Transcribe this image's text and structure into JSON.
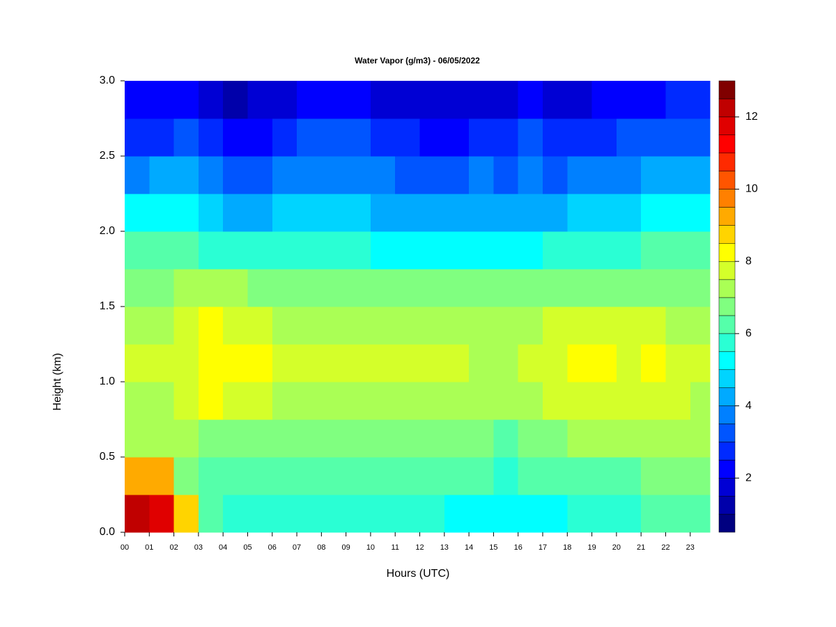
{
  "chart_data": {
    "type": "heatmap",
    "title": "Water Vapor (g/m3) - 06/05/2022",
    "xlabel": "Hours (UTC)",
    "ylabel": "Height (km)",
    "x": [
      0,
      1,
      2,
      3,
      4,
      5,
      6,
      7,
      8,
      9,
      10,
      11,
      12,
      13,
      14,
      15,
      16,
      17,
      18,
      19,
      20,
      21,
      22,
      23
    ],
    "y": [
      0,
      0.25,
      0.5,
      0.75,
      1,
      1.25,
      1.5,
      1.75,
      2,
      2.25,
      2.5,
      2.75
    ],
    "z": [
      [
        12,
        11.5,
        8.5,
        6,
        5.5,
        5.5,
        5.5,
        5.5,
        5.5,
        5.5,
        5.5,
        5.5,
        5.5,
        5,
        5,
        5,
        5,
        5,
        5.5,
        5.5,
        5.5,
        6,
        6,
        6
      ],
      [
        9,
        9,
        6.5,
        6,
        6,
        6,
        6,
        6,
        6,
        6,
        6,
        6,
        6,
        6,
        6,
        5.5,
        6,
        6,
        6,
        6,
        6,
        6.5,
        6.5,
        6.5
      ],
      [
        7,
        7,
        7,
        6.5,
        6.5,
        6.5,
        6.5,
        6.5,
        6.5,
        6.5,
        6.5,
        6.5,
        6.5,
        6.5,
        6.5,
        6,
        6.5,
        6.5,
        7,
        7,
        7,
        7,
        7,
        7
      ],
      [
        7,
        7,
        7.5,
        8,
        7.5,
        7.5,
        7,
        7,
        7,
        7,
        7,
        7,
        7,
        7,
        7,
        7,
        7,
        7.5,
        7.5,
        7.5,
        7.5,
        7.5,
        7.5,
        7
      ],
      [
        7.5,
        7.5,
        7.5,
        8,
        8,
        8,
        7.5,
        7.5,
        7.5,
        7.5,
        7.5,
        7.5,
        7.5,
        7.5,
        7,
        7,
        7.5,
        7.5,
        8,
        8,
        7.5,
        8,
        7.5,
        7.5
      ],
      [
        7,
        7,
        7.5,
        8,
        7.5,
        7.5,
        7,
        7,
        7,
        7,
        7,
        7,
        7,
        7,
        7,
        7,
        7,
        7.5,
        7.5,
        7.5,
        7.5,
        7.5,
        7,
        7
      ],
      [
        6.5,
        6.5,
        7,
        7,
        7,
        6.5,
        6.5,
        6.5,
        6.5,
        6.5,
        6.5,
        6.5,
        6.5,
        6.5,
        6.5,
        6.5,
        6.5,
        6.5,
        6.5,
        6.5,
        6.5,
        6.5,
        6.5,
        6.5
      ],
      [
        6,
        6,
        6,
        5.5,
        5.5,
        5.5,
        5.5,
        5.5,
        5.5,
        5.5,
        5,
        5,
        5,
        5,
        5,
        5,
        5,
        5.5,
        5.5,
        5.5,
        5.5,
        6,
        6,
        6
      ],
      [
        5,
        5,
        5,
        4.5,
        4,
        4,
        4.5,
        4.5,
        4.5,
        4.5,
        4,
        4,
        4,
        4,
        4,
        4,
        4,
        4,
        4.5,
        4.5,
        4.5,
        5,
        5,
        5
      ],
      [
        3.5,
        4,
        4,
        3.5,
        3,
        3,
        3.5,
        3.5,
        3.5,
        3.5,
        3.5,
        3,
        3,
        3,
        3.5,
        3,
        3.5,
        3,
        3.5,
        3.5,
        3.5,
        4,
        4,
        4
      ],
      [
        2.5,
        2.5,
        3,
        2.5,
        2,
        2,
        2.5,
        3,
        3,
        3,
        2.5,
        2.5,
        2,
        2,
        2.5,
        2.5,
        3,
        2.5,
        2.5,
        2.5,
        3,
        3,
        3,
        3
      ],
      [
        2,
        2,
        2,
        1.5,
        1,
        1.5,
        1.5,
        2,
        2,
        2,
        1.5,
        1.5,
        1.5,
        1.5,
        1.5,
        1.5,
        2,
        1.5,
        1.5,
        2,
        2,
        2,
        2.5,
        2.5
      ]
    ],
    "xlim": [
      0,
      23.8
    ],
    "ylim": [
      0,
      3
    ],
    "xticks": [
      {
        "value": 0,
        "label": "00"
      },
      {
        "value": 1,
        "label": "01"
      },
      {
        "value": 2,
        "label": "02"
      },
      {
        "value": 3,
        "label": "03"
      },
      {
        "value": 4,
        "label": "04"
      },
      {
        "value": 5,
        "label": "05"
      },
      {
        "value": 6,
        "label": "06"
      },
      {
        "value": 7,
        "label": "07"
      },
      {
        "value": 8,
        "label": "08"
      },
      {
        "value": 9,
        "label": "09"
      },
      {
        "value": 10,
        "label": "10"
      },
      {
        "value": 11,
        "label": "11"
      },
      {
        "value": 12,
        "label": "12"
      },
      {
        "value": 13,
        "label": "13"
      },
      {
        "value": 14,
        "label": "14"
      },
      {
        "value": 15,
        "label": "15"
      },
      {
        "value": 16,
        "label": "16"
      },
      {
        "value": 17,
        "label": "17"
      },
      {
        "value": 18,
        "label": "18"
      },
      {
        "value": 19,
        "label": "19"
      },
      {
        "value": 20,
        "label": "20"
      },
      {
        "value": 21,
        "label": "21"
      },
      {
        "value": 22,
        "label": "22"
      },
      {
        "value": 23,
        "label": "23"
      }
    ],
    "yticks": [
      {
        "value": 0,
        "label": "0.0"
      },
      0.5,
      {
        "value": 1,
        "label": "1.0"
      },
      1.5,
      {
        "value": 2,
        "label": "2.0"
      },
      2.5,
      {
        "value": 3,
        "label": "3.0"
      }
    ],
    "zlim": [
      0.5,
      13
    ],
    "zticks": [
      2,
      4,
      6,
      8,
      10,
      12
    ],
    "colors": [
      "#000080",
      "#0000AA",
      "#0000D4",
      "#0000FF",
      "#002AFF",
      "#0055FF",
      "#0080FF",
      "#00AAFF",
      "#00D4FF",
      "#00FFFF",
      "#2AFFD4",
      "#55FFAA",
      "#80FF80",
      "#AAFF55",
      "#D4FF2A",
      "#FFFF00",
      "#FFD400",
      "#FFAA00",
      "#FF8000",
      "#FF5500",
      "#FF2A00",
      "#FF0000",
      "#E00000",
      "#C00000",
      "#800000"
    ]
  }
}
